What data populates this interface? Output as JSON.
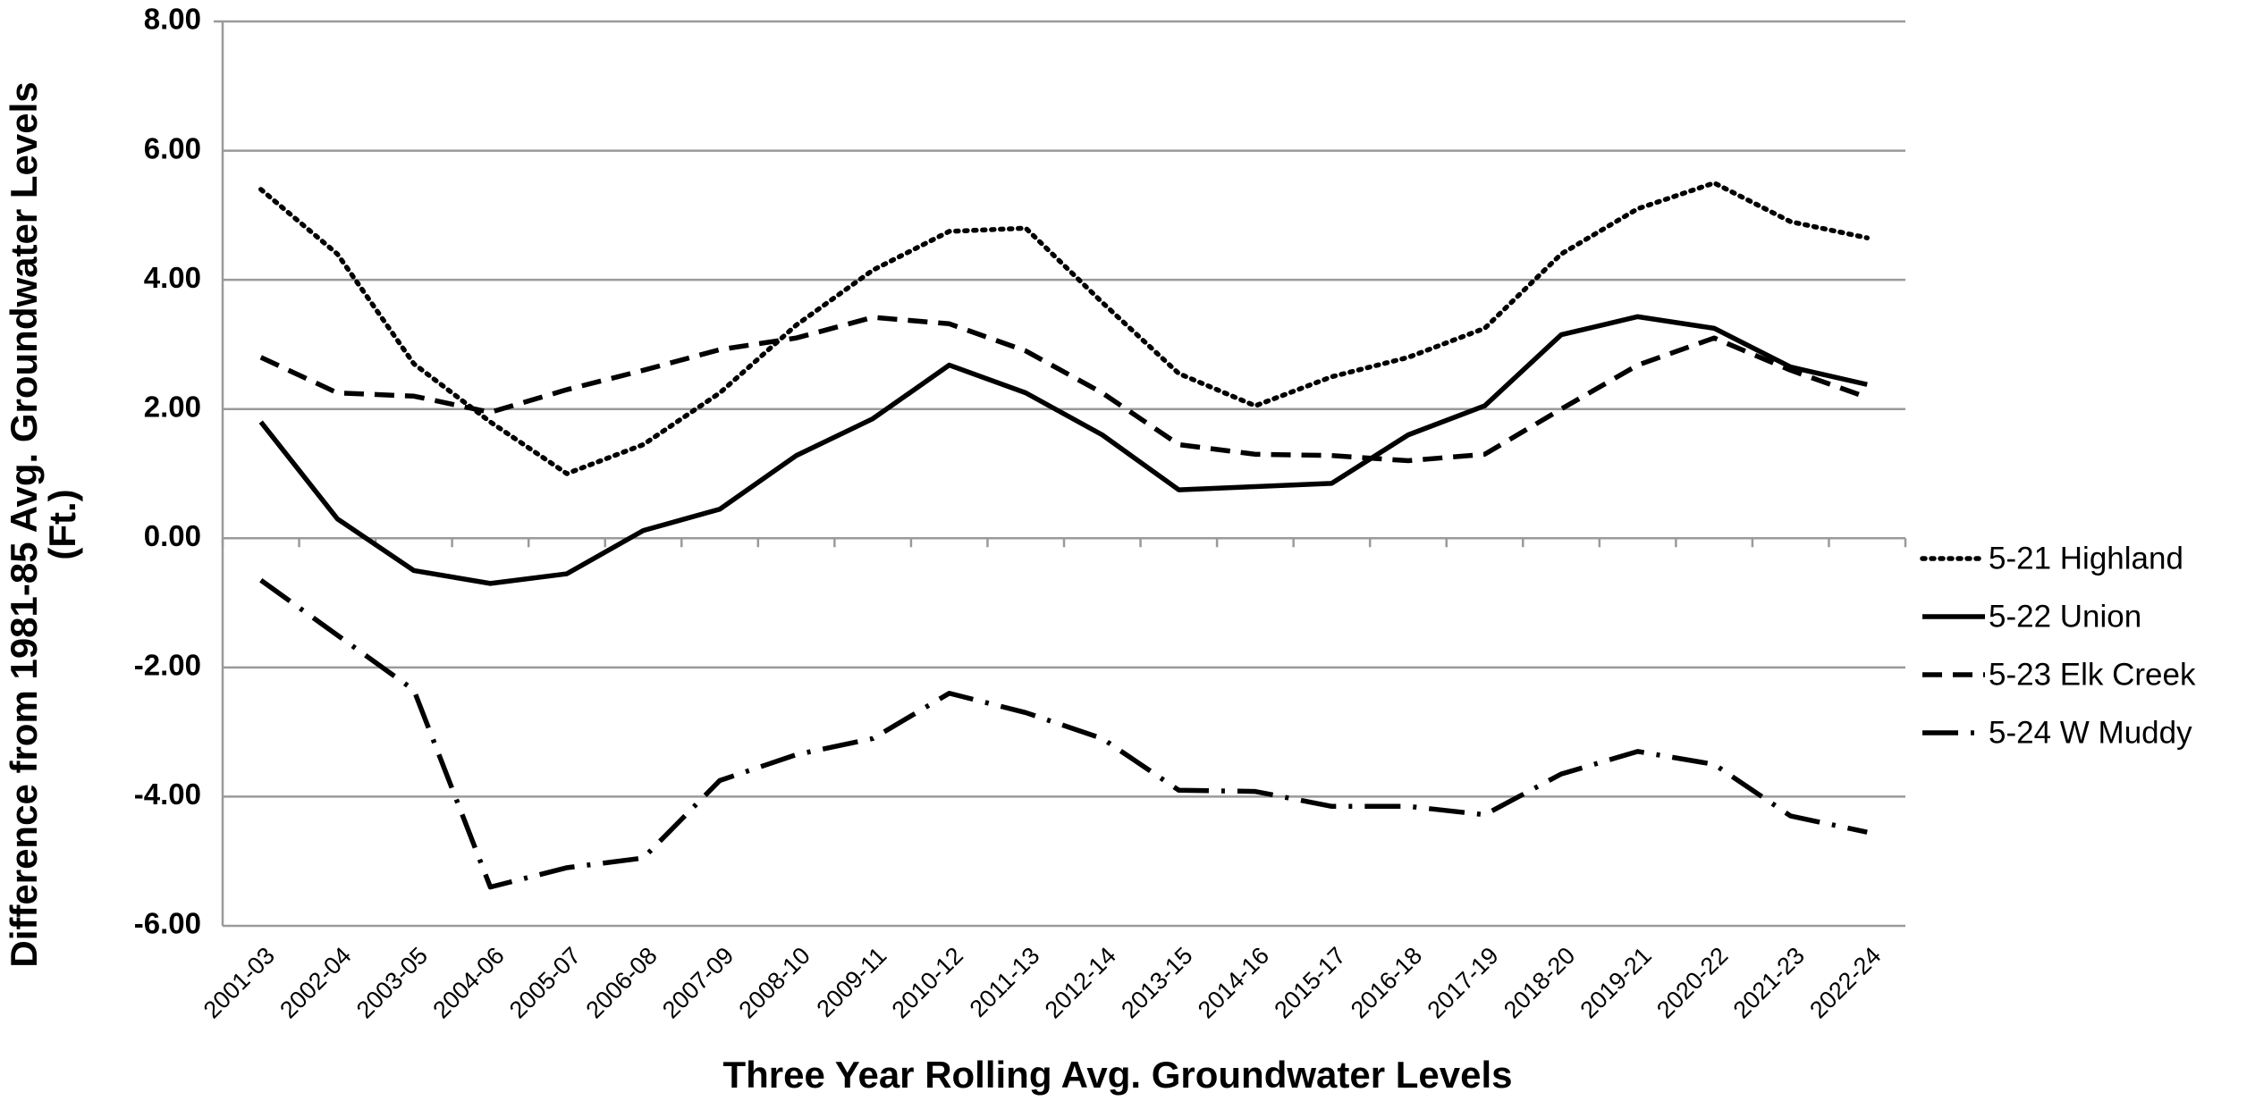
{
  "chart_data": {
    "type": "line",
    "x_label": "Three Year Rolling Avg. Groundwater Levels",
    "y_label": [
      "Difference from 1981-85 Avg. Groundwater Levels",
      "(Ft.)"
    ],
    "categories": [
      "2001-03",
      "2002-04",
      "2003-05",
      "2004-06",
      "2005-07",
      "2006-08",
      "2007-09",
      "2008-10",
      "2009-11",
      "2010-12",
      "2011-13",
      "2012-14",
      "2013-15",
      "2014-16",
      "2015-17",
      "2016-18",
      "2017-19",
      "2018-20",
      "2019-21",
      "2020-22",
      "2021-23",
      "2022-24"
    ],
    "series": [
      {
        "name": "5-21 Highland",
        "color": "#000000",
        "dash": "dotted",
        "values": [
          5.4,
          4.4,
          2.7,
          1.8,
          1.0,
          1.45,
          2.25,
          3.3,
          4.15,
          4.75,
          4.8,
          3.65,
          2.55,
          2.05,
          2.5,
          2.8,
          3.25,
          4.4,
          5.1,
          5.5,
          4.9,
          4.65
        ]
      },
      {
        "name": "5-22 Union",
        "color": "#000000",
        "dash": "solid",
        "values": [
          1.8,
          0.3,
          -0.5,
          -0.7,
          -0.55,
          0.12,
          0.45,
          1.28,
          1.85,
          2.68,
          2.25,
          1.6,
          0.75,
          0.8,
          0.85,
          1.6,
          2.05,
          3.15,
          3.43,
          3.25,
          2.65,
          2.38
        ]
      },
      {
        "name": "5-23 Elk Creek",
        "color": "#000000",
        "dash": "dashed",
        "values": [
          2.8,
          2.25,
          2.2,
          1.95,
          2.3,
          2.6,
          2.92,
          3.1,
          3.42,
          3.32,
          2.9,
          2.25,
          1.45,
          1.3,
          1.28,
          1.2,
          1.3,
          2.0,
          2.68,
          3.1,
          2.6,
          2.18
        ]
      },
      {
        "name": "5-24 W Muddy",
        "color": "#000000",
        "dash": "dashdot",
        "values": [
          -0.65,
          -1.5,
          -2.35,
          -5.4,
          -5.1,
          -4.95,
          -3.75,
          -3.35,
          -3.1,
          -2.4,
          -2.7,
          -3.1,
          -3.9,
          -3.92,
          -4.15,
          -4.15,
          -4.28,
          -3.65,
          -3.3,
          -3.5,
          -4.3,
          -4.55
        ]
      }
    ],
    "ylim": [
      -6,
      8
    ],
    "yticks": [
      {
        "value": -6,
        "label": "-6.00"
      },
      {
        "value": -4,
        "label": "-4.00"
      },
      {
        "value": -2,
        "label": "-2.00"
      },
      {
        "value": 0,
        "label": "0.00"
      },
      {
        "value": 2,
        "label": "2.00"
      },
      {
        "value": 4,
        "label": "4.00"
      },
      {
        "value": 6,
        "label": "6.00"
      },
      {
        "value": 8,
        "label": "8.00"
      }
    ],
    "grid": true,
    "legend": "right"
  }
}
